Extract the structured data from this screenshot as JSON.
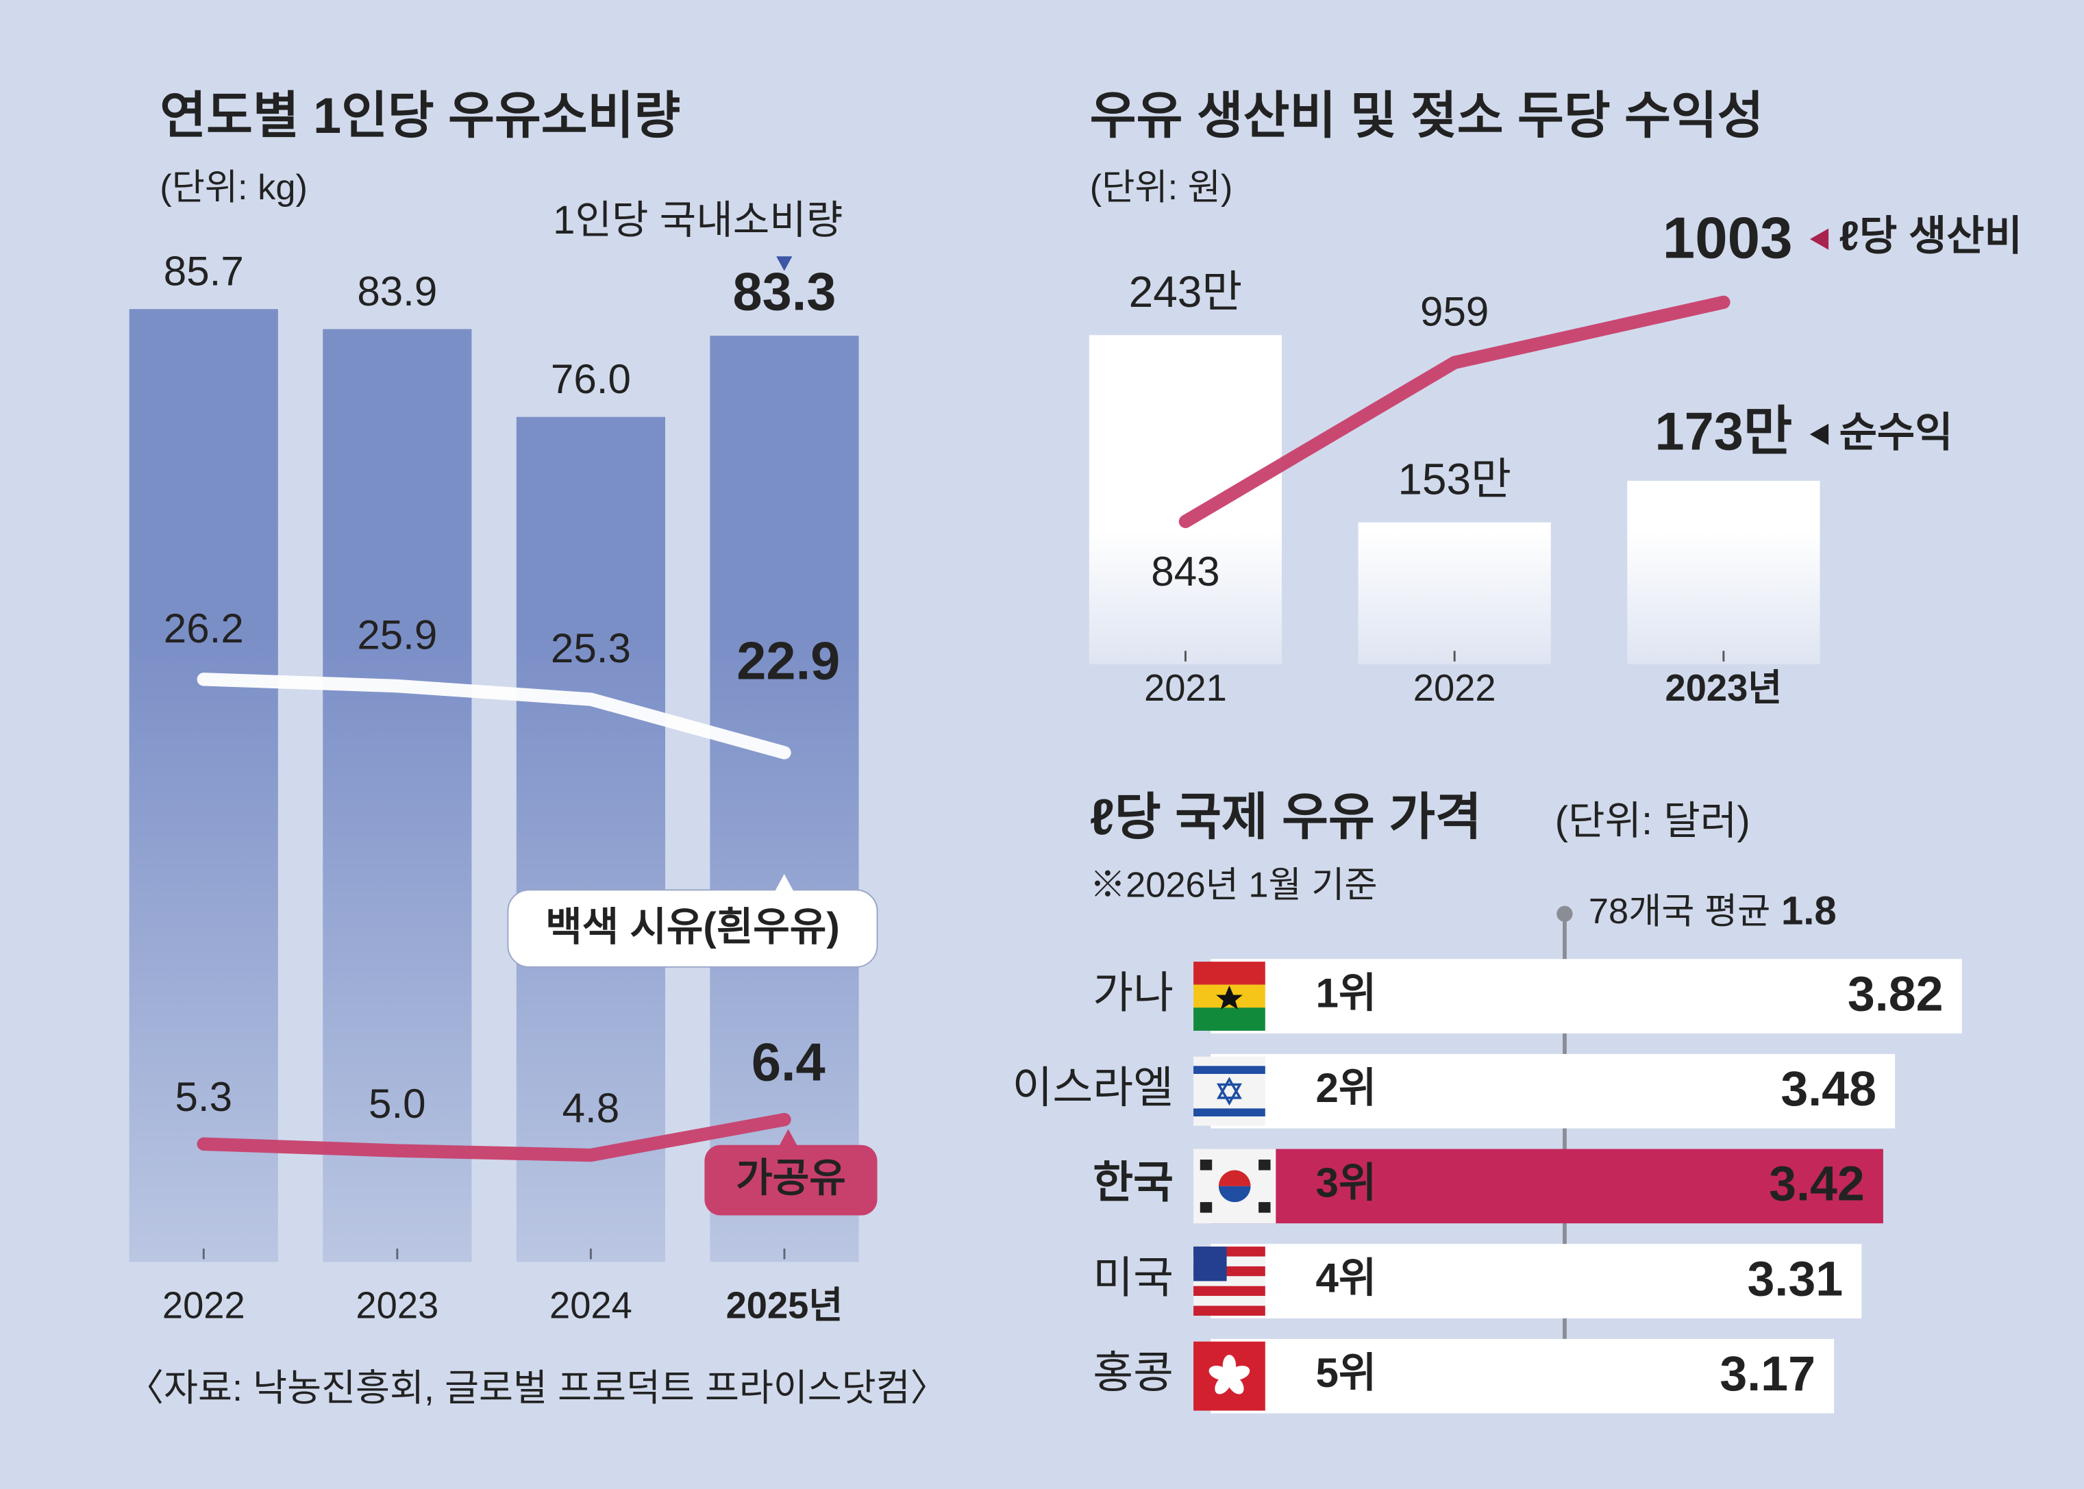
{
  "chart_data": [
    {
      "type": "bar",
      "title": "연도별 1인당 우유소비량",
      "subtitle": "(단위: kg)",
      "categories": [
        "2022",
        "2023",
        "2024",
        "2025년"
      ],
      "ylim": [
        0,
        100
      ],
      "y2lim": [
        0,
        50
      ],
      "series": [
        {
          "name": "1인당 국내소비량",
          "color": "#7b8fc7",
          "values": [
            85.7,
            83.9,
            76,
            83.3
          ],
          "value_labels": [
            "85.7",
            "83.9",
            "76.0",
            "83.3"
          ]
        },
        {
          "name": "백색 시유(흰우유)",
          "type": "line",
          "axis": "y2",
          "color": "#ffffff",
          "values": [
            26.2,
            25.9,
            25.3,
            22.9
          ]
        },
        {
          "name": "가공유",
          "type": "line",
          "axis": "y2",
          "color": "#c8406c",
          "values": [
            5.3,
            5,
            4.8,
            6.4
          ],
          "value_labels": [
            "5.3",
            "5.0",
            "4.8",
            "6.4"
          ]
        }
      ]
    },
    {
      "type": "bar",
      "title": "우유 생산비 및 젖소 두당 수익성",
      "subtitle": "(단위: 원)",
      "categories": [
        "2021",
        "2022",
        "2023년"
      ],
      "ylim": [
        0,
        2700000
      ],
      "y2lim": [
        610,
        1020
      ],
      "series": [
        {
          "name": "순수익",
          "color": "#ffffff",
          "values": [
            2430000,
            1530000,
            1730000
          ],
          "value_labels": [
            "243만",
            "153만",
            "173만"
          ]
        },
        {
          "name": "ℓ당 생산비",
          "type": "line",
          "axis": "y2",
          "color": "#c8406c",
          "values": [
            843,
            959,
            1003
          ]
        }
      ]
    },
    {
      "type": "hbar",
      "title": "ℓ당 국제 우유 가격",
      "subtitle": "(단위: 달러)",
      "note": "※2026년 1월 기준",
      "categories": [
        "가나",
        "이스라엘",
        "한국",
        "미국",
        "홍콩"
      ],
      "ranks": [
        "1위",
        "2위",
        "3위",
        "4위",
        "5위"
      ],
      "values": [
        3.82,
        3.48,
        3.42,
        3.31,
        3.17
      ],
      "color": "#ffffff",
      "highlight": {
        "index": 2,
        "color": "#c4285a"
      },
      "xlim": [
        0,
        4
      ],
      "reference": {
        "label": "78개국 평균",
        "value": 1.8
      }
    }
  ],
  "source": "〈자료: 낙농진흥회, 글로벌 프로덕트 프라이스닷컴〉"
}
